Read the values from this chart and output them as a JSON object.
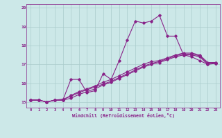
{
  "xlabel": "Windchill (Refroidissement éolien,°C)",
  "bg_color": "#cce8e8",
  "grid_color": "#aacccc",
  "line_color": "#882288",
  "xlim": [
    -0.5,
    23.5
  ],
  "ylim": [
    14.7,
    20.2
  ],
  "xticks": [
    0,
    1,
    2,
    3,
    4,
    5,
    6,
    7,
    8,
    9,
    10,
    11,
    12,
    13,
    14,
    15,
    16,
    17,
    18,
    19,
    20,
    21,
    22,
    23
  ],
  "yticks": [
    15,
    16,
    17,
    18,
    19,
    20
  ],
  "line1_x": [
    0,
    1,
    2,
    3,
    4,
    5,
    6,
    7,
    8,
    9,
    10,
    11,
    12,
    13,
    14,
    15,
    16,
    17,
    18,
    19,
    20,
    21,
    22,
    23
  ],
  "line1_y": [
    15.1,
    15.1,
    15.0,
    15.1,
    15.1,
    16.2,
    16.2,
    15.5,
    15.6,
    16.5,
    16.2,
    17.2,
    18.3,
    19.3,
    19.2,
    19.3,
    19.6,
    18.5,
    18.5,
    17.5,
    17.4,
    17.2,
    17.0,
    17.1
  ],
  "line2_x": [
    0,
    1,
    2,
    3,
    4,
    5,
    6,
    7,
    8,
    9,
    10,
    11,
    12,
    13,
    14,
    15,
    16,
    17,
    18,
    19,
    20,
    21,
    22,
    23
  ],
  "line2_y": [
    15.1,
    15.1,
    15.0,
    15.1,
    15.1,
    15.35,
    15.55,
    15.7,
    15.85,
    16.05,
    16.2,
    16.4,
    16.6,
    16.8,
    17.0,
    17.15,
    17.2,
    17.35,
    17.5,
    17.6,
    17.6,
    17.5,
    17.1,
    17.1
  ],
  "line3_x": [
    0,
    1,
    2,
    3,
    4,
    5,
    6,
    7,
    8,
    9,
    10,
    11,
    12,
    13,
    14,
    15,
    16,
    17,
    18,
    19,
    20,
    21,
    22,
    23
  ],
  "line3_y": [
    15.1,
    15.1,
    15.0,
    15.1,
    15.15,
    15.3,
    15.5,
    15.65,
    15.8,
    15.95,
    16.1,
    16.3,
    16.5,
    16.7,
    16.9,
    17.05,
    17.15,
    17.3,
    17.45,
    17.55,
    17.55,
    17.45,
    17.05,
    17.05
  ],
  "line4_x": [
    0,
    1,
    2,
    3,
    4,
    5,
    6,
    7,
    8,
    9,
    10,
    11,
    12,
    13,
    14,
    15,
    16,
    17,
    18,
    19,
    20,
    21,
    22,
    23
  ],
  "line4_y": [
    15.1,
    15.1,
    15.0,
    15.1,
    15.1,
    15.2,
    15.4,
    15.55,
    15.7,
    15.9,
    16.05,
    16.25,
    16.45,
    16.65,
    16.85,
    17.0,
    17.1,
    17.25,
    17.4,
    17.5,
    17.5,
    17.4,
    17.0,
    17.05
  ]
}
